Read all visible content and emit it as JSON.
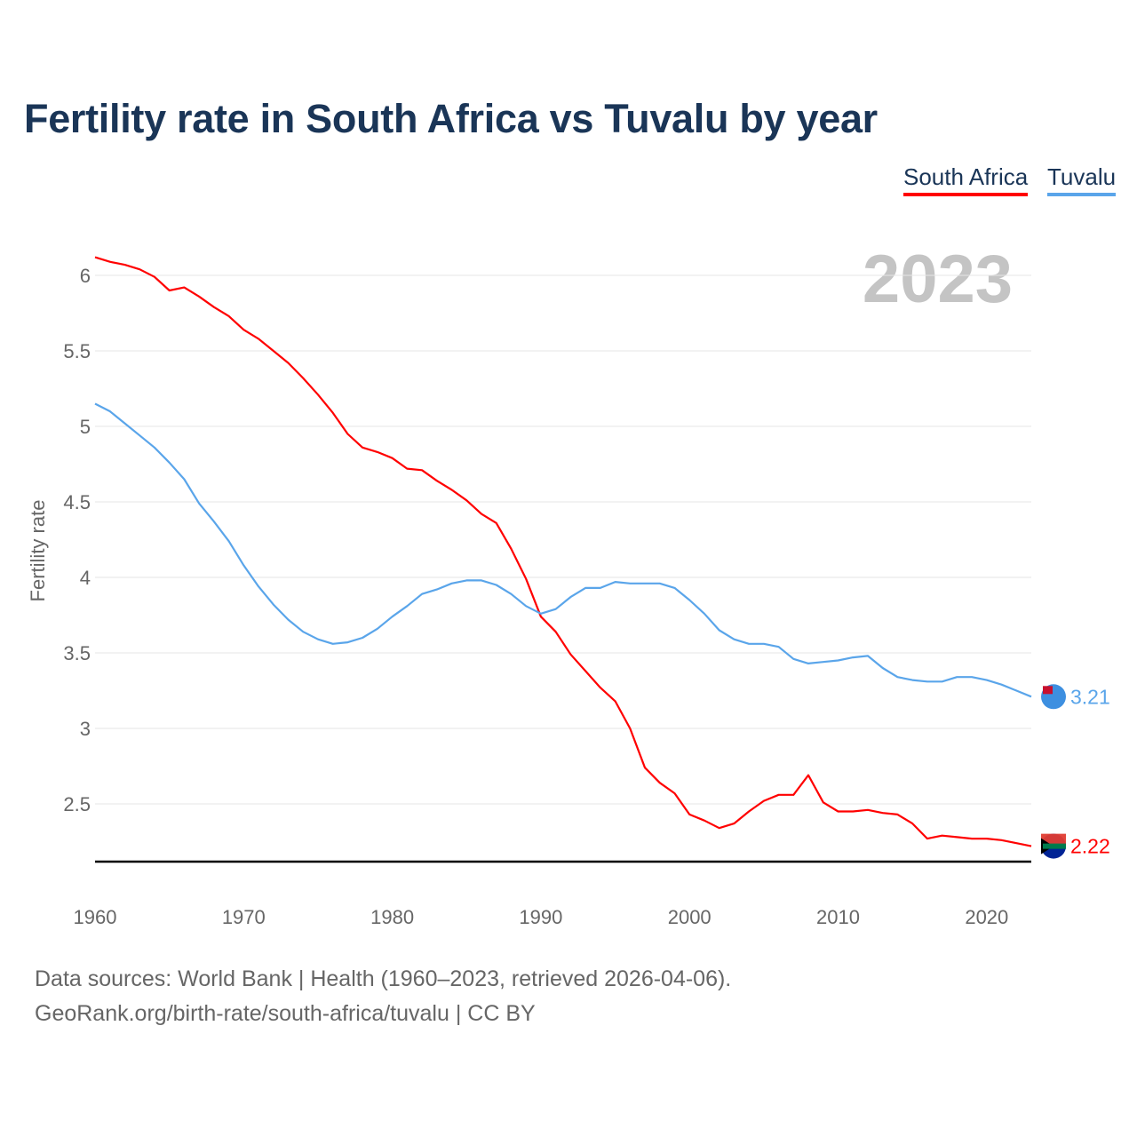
{
  "title": "Fertility rate in South Africa vs Tuvalu by year",
  "legend": [
    "South Africa",
    "Tuvalu"
  ],
  "footer": {
    "line1": "Data sources: World Bank | Health (1960–2023, retrieved 2026-04-06).",
    "line2": "GeoRank.org/birth-rate/south-africa/tuvalu | CC BY"
  },
  "chart_data": {
    "type": "line",
    "title": "Fertility rate in South Africa vs Tuvalu by year",
    "xlabel": "",
    "ylabel": "Fertility rate",
    "year_watermark": "2023",
    "xlim": [
      1960,
      2023
    ],
    "ylim": [
      2.11,
      6.2
    ],
    "xticks": [
      "1960",
      "1970",
      "1980",
      "1990",
      "2000",
      "2010",
      "2020"
    ],
    "yticks": [
      "2.5",
      "3",
      "3.5",
      "4",
      "4.5",
      "5",
      "5.5",
      "6"
    ],
    "grid": true,
    "legend_position": "top-right",
    "x_start": 1960,
    "series": [
      {
        "name": "South Africa",
        "color": "#ff0000",
        "end_label": "2.22",
        "values": [
          6.12,
          6.09,
          6.07,
          6.04,
          5.99,
          5.9,
          5.92,
          5.86,
          5.79,
          5.73,
          5.64,
          5.58,
          5.5,
          5.42,
          5.32,
          5.21,
          5.09,
          4.95,
          4.86,
          4.83,
          4.79,
          4.72,
          4.71,
          4.64,
          4.58,
          4.51,
          4.42,
          4.36,
          4.19,
          3.99,
          3.74,
          3.64,
          3.49,
          3.38,
          3.27,
          3.18,
          3.0,
          2.74,
          2.64,
          2.57,
          2.43,
          2.39,
          2.34,
          2.37,
          2.45,
          2.52,
          2.56,
          2.56,
          2.69,
          2.51,
          2.45,
          2.45,
          2.46,
          2.44,
          2.43,
          2.37,
          2.27,
          2.29,
          2.28,
          2.27,
          2.27,
          2.26,
          2.24,
          2.22
        ]
      },
      {
        "name": "Tuvalu",
        "color": "#5aa5ea",
        "end_label": "3.21",
        "values": [
          5.15,
          5.1,
          5.02,
          4.94,
          4.86,
          4.76,
          4.65,
          4.49,
          4.37,
          4.24,
          4.08,
          3.94,
          3.82,
          3.72,
          3.64,
          3.59,
          3.56,
          3.57,
          3.6,
          3.66,
          3.74,
          3.81,
          3.89,
          3.92,
          3.96,
          3.98,
          3.98,
          3.95,
          3.89,
          3.81,
          3.76,
          3.79,
          3.87,
          3.93,
          3.93,
          3.97,
          3.96,
          3.96,
          3.96,
          3.93,
          3.85,
          3.76,
          3.65,
          3.59,
          3.56,
          3.56,
          3.54,
          3.46,
          3.43,
          3.44,
          3.45,
          3.47,
          3.48,
          3.4,
          3.34,
          3.32,
          3.31,
          3.31,
          3.34,
          3.34,
          3.32,
          3.29,
          3.25,
          3.21
        ]
      }
    ]
  }
}
